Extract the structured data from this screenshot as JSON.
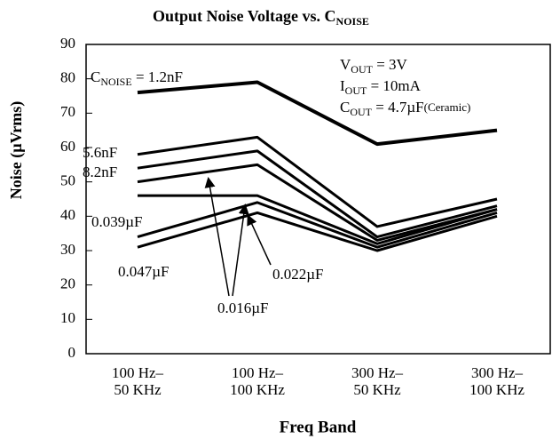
{
  "chart_data": {
    "type": "line",
    "title": {
      "main": "Output Noise Voltage vs. C",
      "sub": "NOISE"
    },
    "x_label": "Freq Band",
    "y_label": "Noise (µVrms)",
    "categories": [
      "100 Hz–\n50 KHz",
      "100 Hz–\n100 KHz",
      "300 Hz–\n50 KHz",
      "300 Hz–\n100 KHz"
    ],
    "ylim": [
      0,
      90
    ],
    "yticks": [
      0,
      10,
      20,
      30,
      40,
      50,
      60,
      70,
      80,
      90
    ],
    "color": "#000000",
    "series": [
      {
        "name": "1.2nF",
        "values": [
          76,
          79,
          61,
          65
        ]
      },
      {
        "name": "5.6nF",
        "values": [
          58,
          63,
          37,
          45
        ]
      },
      {
        "name": "8.2nF",
        "values": [
          54,
          59,
          34,
          43
        ]
      },
      {
        "name": "0.016µF",
        "values": [
          50,
          55,
          33,
          42
        ]
      },
      {
        "name": "0.022µF",
        "values": [
          46,
          46,
          32,
          42
        ]
      },
      {
        "name": "0.039µF",
        "values": [
          34,
          44,
          31,
          41
        ]
      },
      {
        "name": "0.047µF",
        "values": [
          31,
          41,
          30,
          40
        ]
      }
    ],
    "series_label_prefix": {
      "main": "C",
      "sub": "NOISE",
      "rest": " = "
    },
    "annotations": [
      {
        "main": "V",
        "sub": "OUT",
        "rest": " = 3V"
      },
      {
        "main": "I",
        "sub": "OUT",
        "rest": " = 10mA"
      },
      {
        "main": "C",
        "sub": "OUT",
        "rest": " = 4.7µF",
        "small": "(Ceramic)"
      }
    ]
  }
}
